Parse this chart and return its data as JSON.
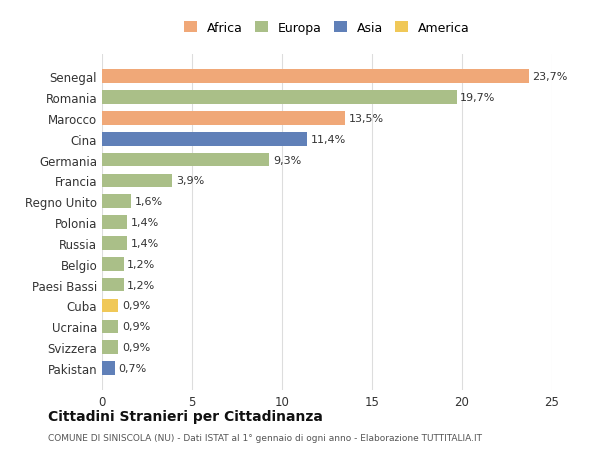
{
  "countries": [
    "Senegal",
    "Romania",
    "Marocco",
    "Cina",
    "Germania",
    "Francia",
    "Regno Unito",
    "Polonia",
    "Russia",
    "Belgio",
    "Paesi Bassi",
    "Cuba",
    "Ucraina",
    "Svizzera",
    "Pakistan"
  ],
  "values": [
    23.7,
    19.7,
    13.5,
    11.4,
    9.3,
    3.9,
    1.6,
    1.4,
    1.4,
    1.2,
    1.2,
    0.9,
    0.9,
    0.9,
    0.7
  ],
  "labels": [
    "23,7%",
    "19,7%",
    "13,5%",
    "11,4%",
    "9,3%",
    "3,9%",
    "1,6%",
    "1,4%",
    "1,4%",
    "1,2%",
    "1,2%",
    "0,9%",
    "0,9%",
    "0,9%",
    "0,7%"
  ],
  "continents": [
    "Africa",
    "Europa",
    "Africa",
    "Asia",
    "Europa",
    "Europa",
    "Europa",
    "Europa",
    "Europa",
    "Europa",
    "Europa",
    "America",
    "Europa",
    "Europa",
    "Asia"
  ],
  "colors": {
    "Africa": "#F0A878",
    "Europa": "#AABF88",
    "Asia": "#6080B8",
    "America": "#F0C858"
  },
  "legend_order": [
    "Africa",
    "Europa",
    "Asia",
    "America"
  ],
  "title": "Cittadini Stranieri per Cittadinanza",
  "subtitle": "COMUNE DI SINISCOLA (NU) - Dati ISTAT al 1° gennaio di ogni anno - Elaborazione TUTTITALIA.IT",
  "xlim": [
    0,
    25
  ],
  "xticks": [
    0,
    5,
    10,
    15,
    20,
    25
  ],
  "background_color": "#ffffff",
  "grid_color": "#dddddd"
}
